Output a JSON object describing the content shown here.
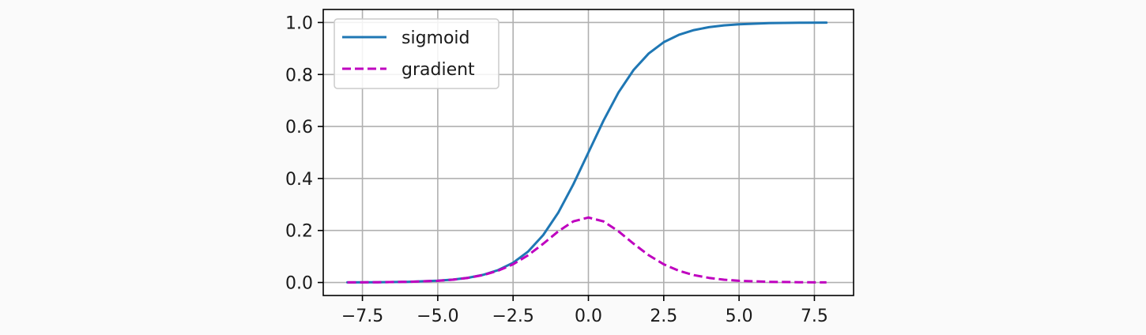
{
  "chart_data": {
    "type": "line",
    "title": "",
    "xlabel": "",
    "ylabel": "",
    "xlim": [
      -8.8,
      8.8
    ],
    "ylim": [
      -0.05,
      1.05
    ],
    "grid": true,
    "legend_position": "top-left",
    "x_ticks": [
      {
        "value": -7.5,
        "label": "−7.5"
      },
      {
        "value": -5.0,
        "label": "−5.0"
      },
      {
        "value": -2.5,
        "label": "−2.5"
      },
      {
        "value": 0.0,
        "label": "0.0"
      },
      {
        "value": 2.5,
        "label": "2.5"
      },
      {
        "value": 5.0,
        "label": "5.0"
      },
      {
        "value": 7.5,
        "label": "7.5"
      }
    ],
    "y_ticks": [
      {
        "value": 0.0,
        "label": "0.0"
      },
      {
        "value": 0.2,
        "label": "0.2"
      },
      {
        "value": 0.4,
        "label": "0.4"
      },
      {
        "value": 0.6,
        "label": "0.6"
      },
      {
        "value": 0.8,
        "label": "0.8"
      },
      {
        "value": 1.0,
        "label": "1.0"
      }
    ],
    "x": [
      -8.0,
      -7.0,
      -6.0,
      -5.0,
      -4.5,
      -4.0,
      -3.5,
      -3.0,
      -2.5,
      -2.0,
      -1.5,
      -1.0,
      -0.5,
      0.0,
      0.5,
      1.0,
      1.5,
      2.0,
      2.5,
      3.0,
      3.5,
      4.0,
      4.5,
      5.0,
      6.0,
      7.0,
      7.9
    ],
    "series": [
      {
        "name": "sigmoid",
        "style": "solid",
        "color": "#1f77b4",
        "values": [
          0.0003,
          0.0009,
          0.0025,
          0.0067,
          0.011,
          0.018,
          0.0293,
          0.0474,
          0.0759,
          0.1192,
          0.1824,
          0.2689,
          0.3775,
          0.5,
          0.6225,
          0.7311,
          0.8176,
          0.8808,
          0.9241,
          0.9526,
          0.9707,
          0.982,
          0.989,
          0.9933,
          0.9975,
          0.9991,
          0.9996
        ]
      },
      {
        "name": "gradient",
        "style": "dashed",
        "color": "#bf00bf",
        "values": [
          0.0003,
          0.0009,
          0.0025,
          0.0066,
          0.0109,
          0.0177,
          0.0285,
          0.0452,
          0.0701,
          0.105,
          0.1491,
          0.1966,
          0.235,
          0.25,
          0.235,
          0.1966,
          0.1491,
          0.105,
          0.0701,
          0.0452,
          0.0285,
          0.0177,
          0.0109,
          0.0066,
          0.0025,
          0.0009,
          0.0004
        ]
      }
    ]
  }
}
